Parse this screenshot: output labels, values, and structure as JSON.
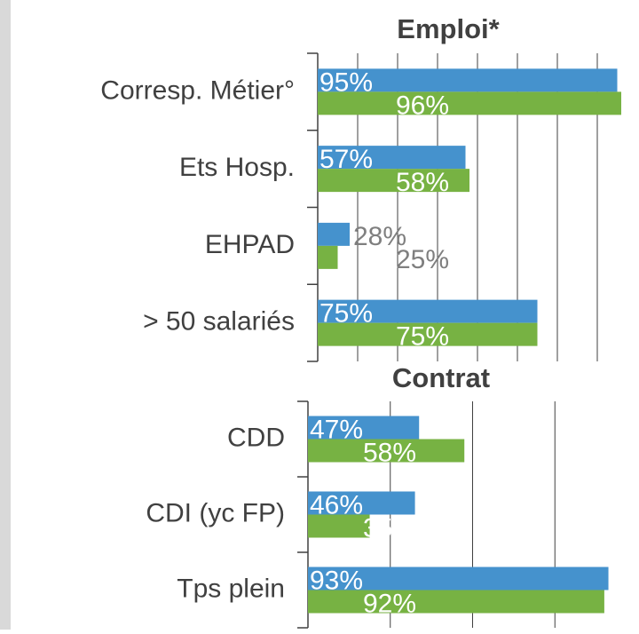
{
  "chart_data": [
    {
      "type": "bar",
      "orientation": "horizontal",
      "title": "Emploi*",
      "categories": [
        "Corresp. Métier°",
        "Ets Hosp.",
        "EHPAD",
        "> 50 salariés"
      ],
      "series": [
        {
          "color": "#4592cd",
          "values": [
            95,
            57,
            28,
            75
          ],
          "value_labels": [
            "95%",
            "57%",
            "28%",
            "75%"
          ]
        },
        {
          "color": "#77b243",
          "values": [
            96,
            58,
            25,
            75
          ],
          "value_labels": [
            "96%",
            "58%",
            "25%",
            "75%"
          ]
        }
      ],
      "xlim": [
        20,
        100
      ],
      "xticks": [
        20,
        30,
        40,
        50,
        60,
        70,
        80,
        90,
        100
      ],
      "grid": true
    },
    {
      "type": "bar",
      "orientation": "horizontal",
      "title": "Contrat",
      "categories": [
        "CDD",
        "CDI (yc FP)",
        "Tps plein"
      ],
      "series": [
        {
          "color": "#4592cd",
          "values": [
            47,
            46,
            93
          ],
          "value_labels": [
            "47%",
            "46%",
            "93%"
          ]
        },
        {
          "color": "#77b243",
          "values": [
            58,
            35,
            92
          ],
          "value_labels": [
            "58%",
            "35",
            "92%"
          ]
        }
      ],
      "xlim": [
        20,
        100
      ],
      "xticks": [
        20,
        40,
        60,
        80,
        100
      ],
      "grid": true
    }
  ]
}
